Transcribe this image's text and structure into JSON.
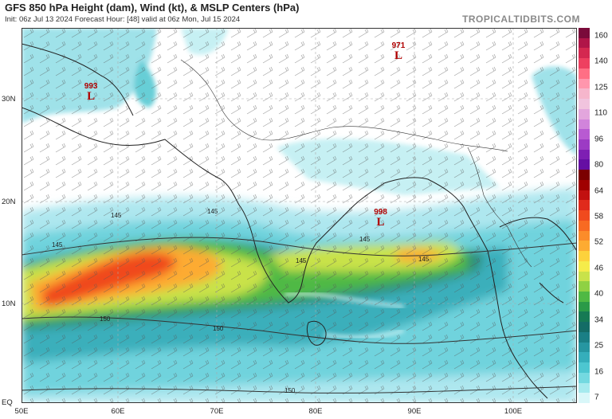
{
  "header": {
    "title": "GFS 850 hPa Height (dam), Wind (kt), & MSLP Centers (hPa)",
    "subtitle": "Init: 06z Jul 13 2024   Forecast Hour: [48]   valid at 06z Mon, Jul 15 2024",
    "brand": "TROPICALTIDBITS.COM"
  },
  "axes": {
    "lat_labels": [
      "30N",
      "20N",
      "10N",
      "EQ"
    ],
    "lon_labels": [
      "50E",
      "60E",
      "70E",
      "80E",
      "90E",
      "100E"
    ],
    "lat_range": [
      0,
      37
    ],
    "lon_range": [
      50,
      106
    ]
  },
  "colorbar": {
    "labels": [
      "160",
      "140",
      "125",
      "110",
      "96",
      "80",
      "64",
      "58",
      "52",
      "46",
      "40",
      "34",
      "25",
      "16",
      "7"
    ],
    "colors": [
      "#7a0a3a",
      "#b01548",
      "#d42850",
      "#ee4060",
      "#ff6f85",
      "#ff96ad",
      "#f6b6cc",
      "#f1c4de",
      "#e3a6dd",
      "#d184db",
      "#b85ad2",
      "#9c3bc4",
      "#7e1fb3",
      "#650fa3",
      "#7b0000",
      "#a00000",
      "#c21010",
      "#e02b1c",
      "#f04a1e",
      "#f86a22",
      "#fb8c2a",
      "#fdab32",
      "#fdd23c",
      "#f5ec4a",
      "#c9e24a",
      "#8fd143",
      "#4fb944",
      "#2a9a48",
      "#167a54",
      "#146c66",
      "#1a7f85",
      "#2696a1",
      "#35aebb",
      "#4dc6d0",
      "#74d9e0",
      "#a6eaee",
      "#d9f7f9"
    ],
    "unit": "kt"
  },
  "pressure_centers": [
    {
      "value": "993",
      "letter": "L",
      "lon": 57.0,
      "lat": 30.5
    },
    {
      "value": "971",
      "letter": "L",
      "lon": 88.0,
      "lat": 34.5
    },
    {
      "value": "998",
      "letter": "L",
      "lon": 86.2,
      "lat": 18.1
    }
  ],
  "contour_labels": [
    "145",
    "145",
    "145",
    "145",
    "150",
    "150",
    "150",
    "145",
    "145"
  ]
}
